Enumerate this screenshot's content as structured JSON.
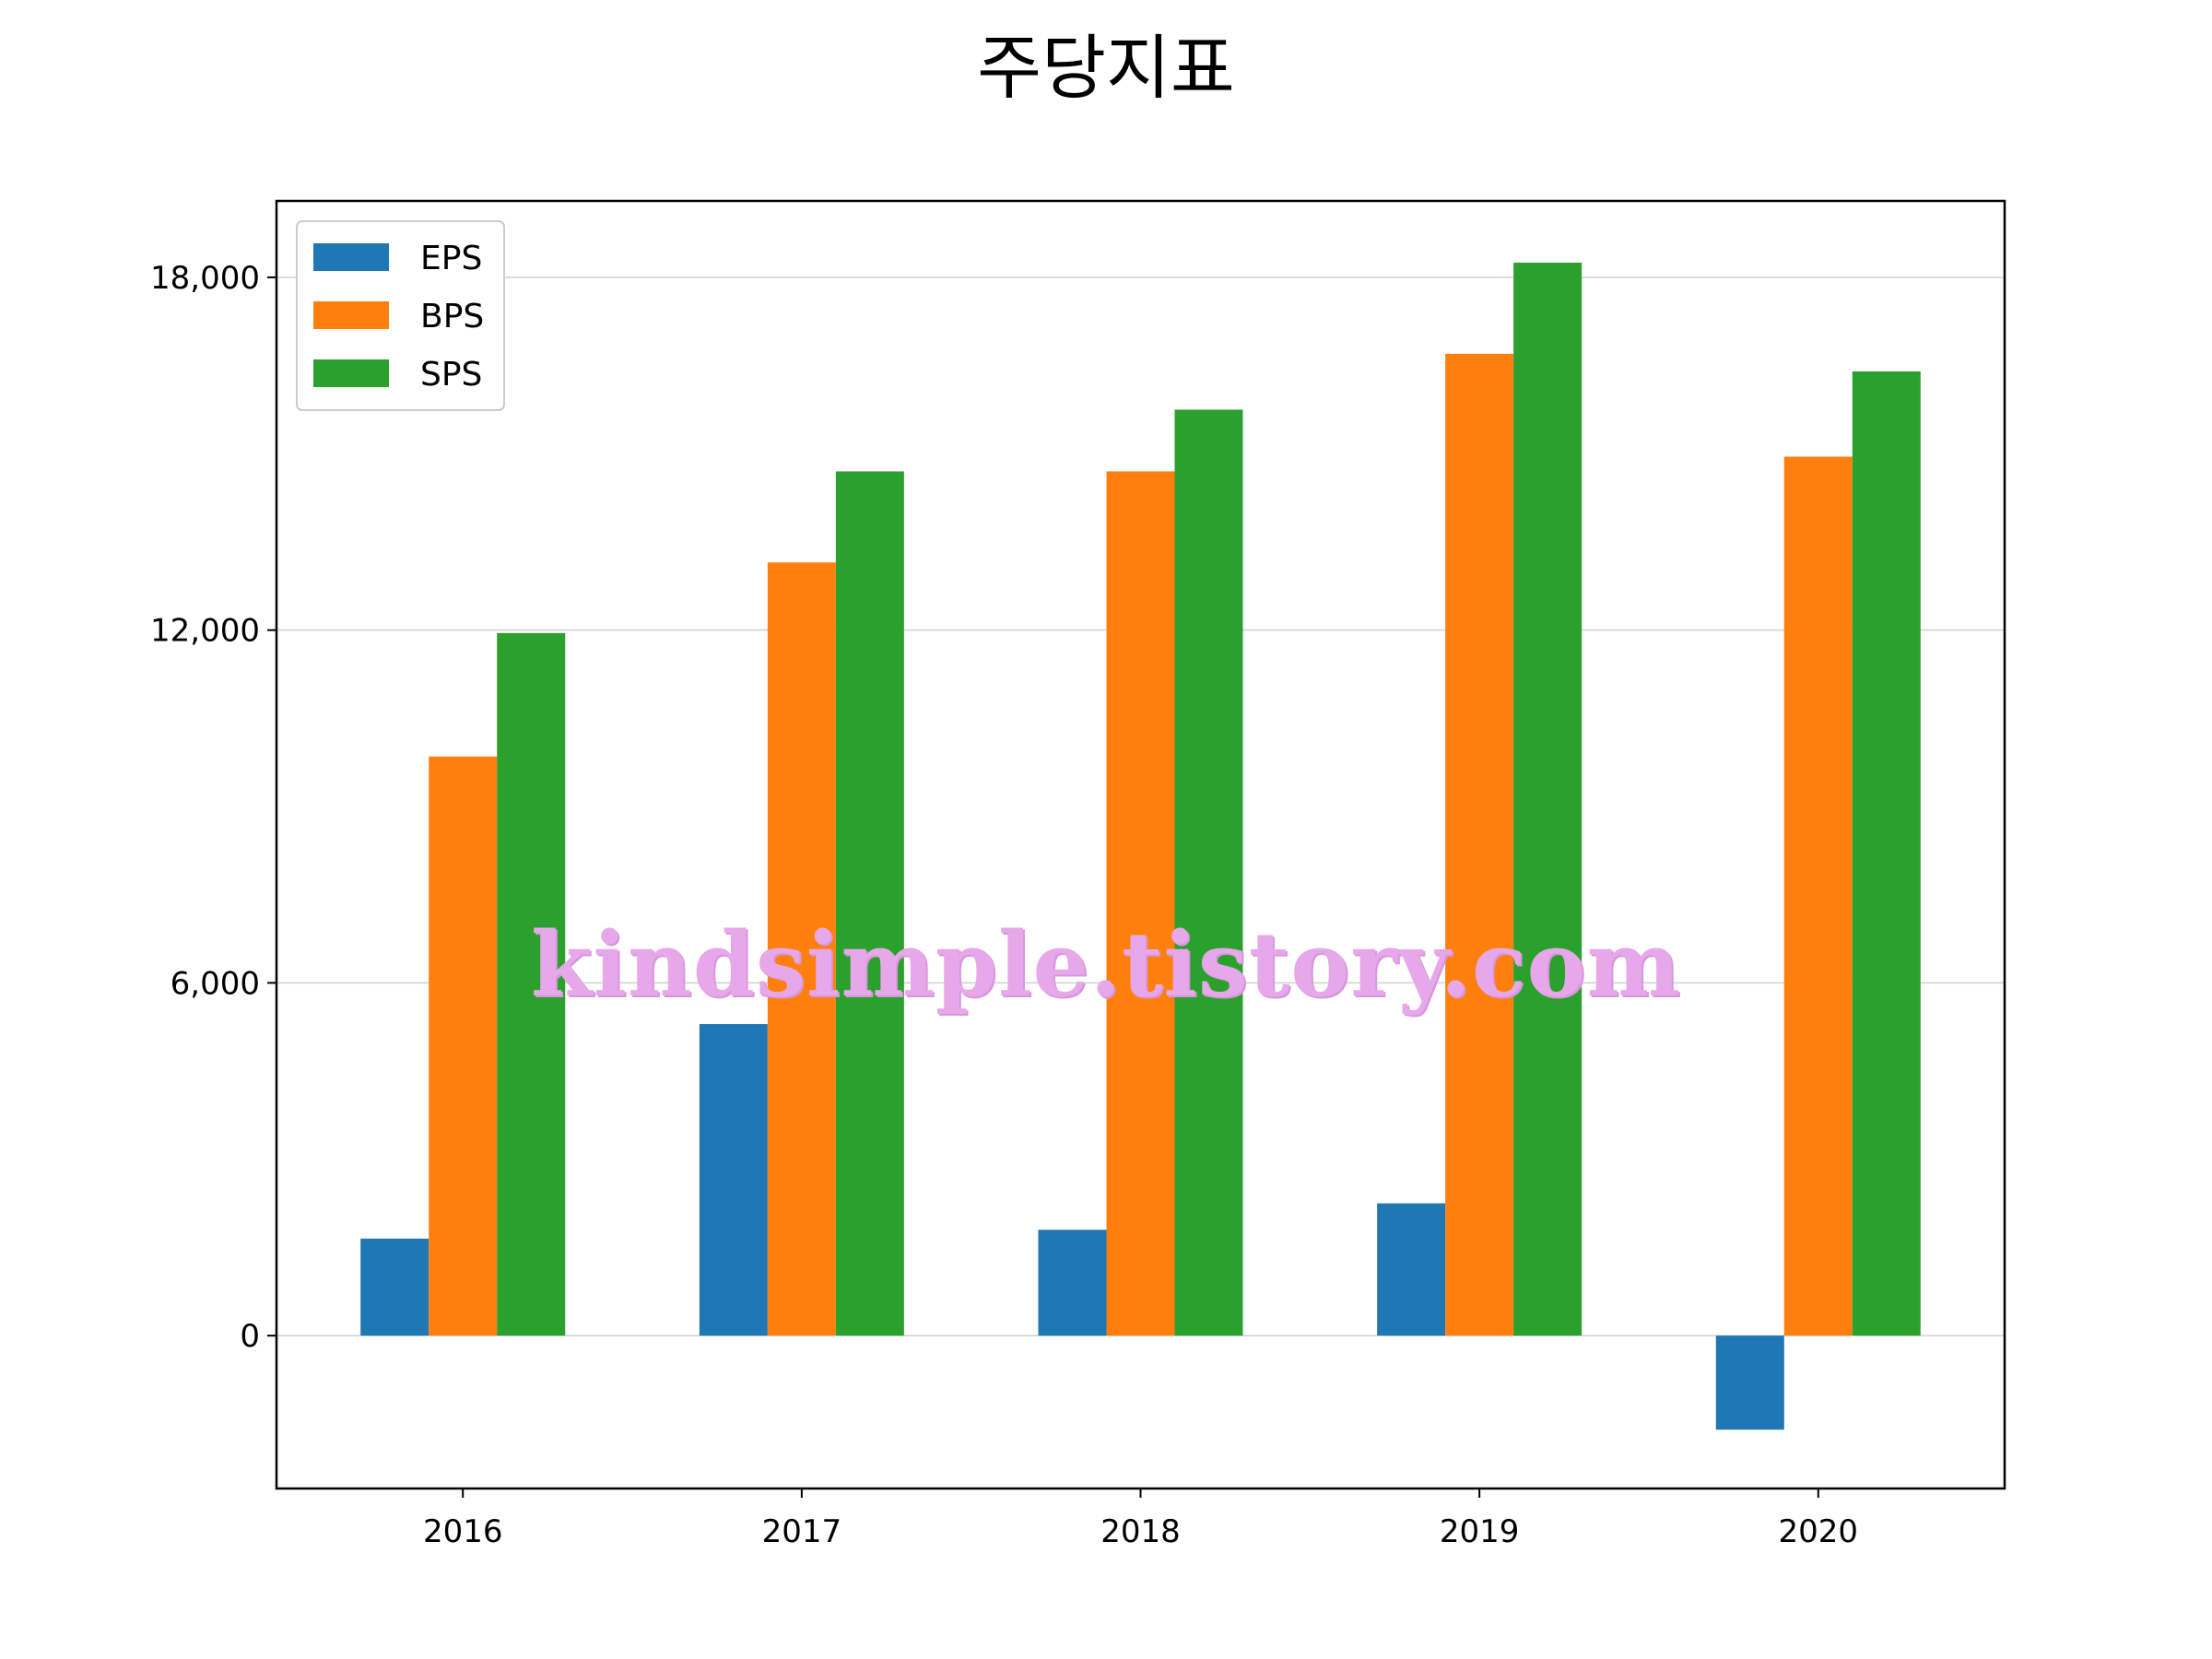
{
  "chart_data": {
    "type": "bar",
    "title": "주당지표",
    "xlabel": "",
    "ylabel": "",
    "categories": [
      "2016",
      "2017",
      "2018",
      "2019",
      "2020"
    ],
    "series": [
      {
        "name": "EPS",
        "color": "#1f77b4",
        "values": [
          1650,
          5300,
          1800,
          2250,
          -1600
        ]
      },
      {
        "name": "BPS",
        "color": "#ff7f0e",
        "values": [
          9850,
          13150,
          14700,
          16700,
          14950
        ]
      },
      {
        "name": "SPS",
        "color": "#2ca02c",
        "values": [
          11950,
          14700,
          15750,
          18250,
          16400
        ]
      }
    ],
    "yticks": [
      0,
      6000,
      12000,
      18000
    ],
    "ytick_labels": [
      "0",
      "6,000",
      "12,000",
      "18,000"
    ],
    "ylim": [
      -2600,
      19300
    ],
    "grid": "horizontal",
    "legend_position": "upper-left"
  },
  "watermark": "kindsimple.tistory.com"
}
